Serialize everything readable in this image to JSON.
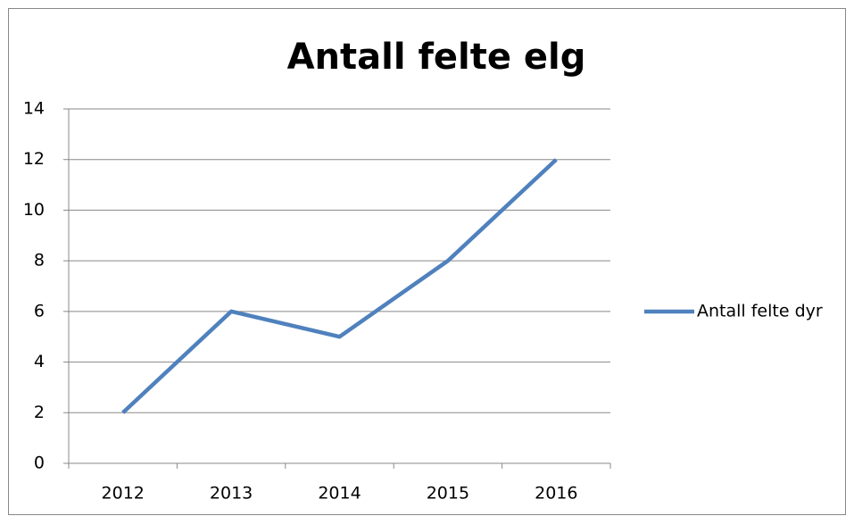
{
  "chart_data": {
    "type": "line",
    "title": "Antall felte elg",
    "categories": [
      "2012",
      "2013",
      "2014",
      "2015",
      "2016"
    ],
    "series": [
      {
        "name": "Antall felte dyr",
        "color": "#4f81bd",
        "values": [
          2,
          6,
          5,
          8,
          12
        ]
      }
    ],
    "ylim": [
      0,
      14
    ],
    "yticks": [
      0,
      2,
      4,
      6,
      8,
      10,
      12,
      14
    ],
    "grid": true,
    "legend": "right"
  }
}
